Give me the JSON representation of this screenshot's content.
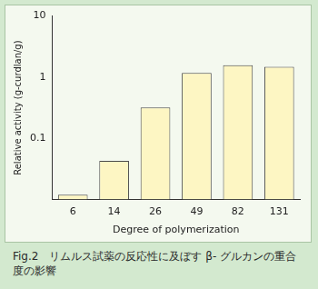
{
  "chart_data": {
    "type": "bar",
    "title": "Fig.2　リムルス試薬の反応性に及ぼす β- グルカンの重合度の影響",
    "x_label": "Degree of polymerization",
    "y_label": "Relative activity (g-curdlan/g)",
    "categories": [
      "6",
      "14",
      "26",
      "49",
      "82",
      "131"
    ],
    "values": [
      0.012,
      0.043,
      0.32,
      1.17,
      1.57,
      1.48
    ],
    "color": "#fdf6c3",
    "log": "y",
    "ylim": [
      0.01,
      10
    ],
    "yticks": [
      0.1,
      1,
      10
    ],
    "grid": false
  }
}
